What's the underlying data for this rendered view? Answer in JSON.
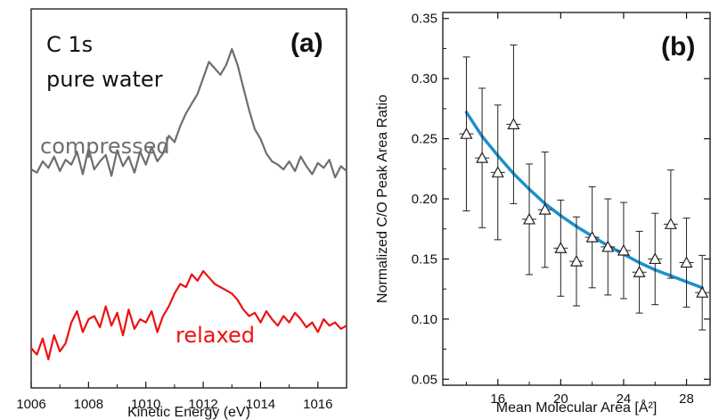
{
  "chart_data": [
    {
      "type": "line",
      "panel_label": "(a)",
      "xlabel": "Kinetic Energy (eV)",
      "ylabel": "",
      "xlim": [
        1006,
        1017
      ],
      "xticks": [
        1006,
        1008,
        1010,
        1012,
        1014,
        1016
      ],
      "annotations": [
        "C 1s",
        "pure water"
      ],
      "series": [
        {
          "name": "compressed",
          "color": "#6e6e6e",
          "x": [
            1006.0,
            1006.2,
            1006.4,
            1006.6,
            1006.8,
            1007.0,
            1007.2,
            1007.4,
            1007.6,
            1007.8,
            1008.0,
            1008.2,
            1008.4,
            1008.6,
            1008.8,
            1009.0,
            1009.2,
            1009.4,
            1009.6,
            1009.8,
            1010.0,
            1010.2,
            1010.4,
            1010.6,
            1010.8,
            1011.0,
            1011.2,
            1011.4,
            1011.6,
            1011.8,
            1012.0,
            1012.2,
            1012.4,
            1012.6,
            1012.8,
            1013.0,
            1013.2,
            1013.4,
            1013.6,
            1013.8,
            1014.0,
            1014.2,
            1014.4,
            1014.6,
            1014.8,
            1015.0,
            1015.2,
            1015.4,
            1015.6,
            1015.8,
            1016.0,
            1016.2,
            1016.4,
            1016.6,
            1016.8,
            1017.0
          ],
          "y": [
            0.25,
            0.23,
            0.3,
            0.26,
            0.33,
            0.24,
            0.31,
            0.28,
            0.36,
            0.22,
            0.38,
            0.25,
            0.3,
            0.34,
            0.21,
            0.37,
            0.27,
            0.33,
            0.23,
            0.36,
            0.28,
            0.39,
            0.3,
            0.35,
            0.46,
            0.42,
            0.52,
            0.6,
            0.66,
            0.72,
            0.82,
            0.92,
            0.88,
            0.84,
            0.9,
            1.0,
            0.9,
            0.76,
            0.62,
            0.5,
            0.44,
            0.35,
            0.3,
            0.28,
            0.25,
            0.3,
            0.24,
            0.33,
            0.27,
            0.22,
            0.29,
            0.26,
            0.31,
            0.2,
            0.27,
            0.24
          ]
        },
        {
          "name": "relaxed",
          "color": "#ee1111",
          "x": [
            1006.0,
            1006.2,
            1006.4,
            1006.6,
            1006.8,
            1007.0,
            1007.2,
            1007.4,
            1007.6,
            1007.8,
            1008.0,
            1008.2,
            1008.4,
            1008.6,
            1008.8,
            1009.0,
            1009.2,
            1009.4,
            1009.6,
            1009.8,
            1010.0,
            1010.2,
            1010.4,
            1010.6,
            1010.8,
            1011.0,
            1011.2,
            1011.4,
            1011.6,
            1011.8,
            1012.0,
            1012.2,
            1012.4,
            1012.6,
            1012.8,
            1013.0,
            1013.2,
            1013.4,
            1013.6,
            1013.8,
            1014.0,
            1014.2,
            1014.4,
            1014.6,
            1014.8,
            1015.0,
            1015.2,
            1015.4,
            1015.6,
            1015.8,
            1016.0,
            1016.2,
            1016.4,
            1016.6,
            1016.8,
            1017.0
          ],
          "y": [
            -0.28,
            -0.32,
            -0.22,
            -0.35,
            -0.2,
            -0.3,
            -0.25,
            -0.12,
            -0.05,
            -0.18,
            -0.1,
            -0.08,
            -0.15,
            -0.02,
            -0.14,
            -0.06,
            -0.2,
            -0.04,
            -0.16,
            -0.1,
            -0.12,
            -0.05,
            -0.18,
            -0.08,
            -0.02,
            0.06,
            0.12,
            0.1,
            0.18,
            0.14,
            0.2,
            0.16,
            0.12,
            0.1,
            0.08,
            0.06,
            0.02,
            -0.04,
            -0.08,
            -0.06,
            -0.12,
            -0.05,
            -0.1,
            -0.14,
            -0.08,
            -0.12,
            -0.06,
            -0.1,
            -0.15,
            -0.12,
            -0.18,
            -0.1,
            -0.14,
            -0.12,
            -0.16,
            -0.14
          ]
        }
      ]
    },
    {
      "type": "scatter",
      "panel_label": "(b)",
      "xlabel": "Mean Molecular Area [Å²]",
      "ylabel": "Normalized C/O Peak Area Ratio",
      "xlim": [
        12.5,
        29.5
      ],
      "ylim": [
        0.045,
        0.355
      ],
      "xticks": [
        16,
        20,
        24,
        28
      ],
      "yticks": [
        0.05,
        0.1,
        0.15,
        0.2,
        0.25,
        0.3,
        0.35
      ],
      "series": [
        {
          "name": "",
          "marker": "triangle",
          "x": [
            14,
            15,
            16,
            17,
            18,
            19,
            20,
            21,
            22,
            23,
            24,
            25,
            26,
            27,
            28,
            29
          ],
          "y": [
            0.254,
            0.234,
            0.222,
            0.262,
            0.183,
            0.191,
            0.159,
            0.148,
            0.168,
            0.16,
            0.157,
            0.139,
            0.15,
            0.179,
            0.147,
            0.122
          ],
          "err": [
            0.064,
            0.058,
            0.056,
            0.066,
            0.046,
            0.048,
            0.04,
            0.037,
            0.042,
            0.04,
            0.04,
            0.034,
            0.038,
            0.045,
            0.037,
            0.031
          ]
        },
        {
          "name": "",
          "type": "fit",
          "color": "#1f8fcc",
          "x": [
            14,
            15,
            16,
            17,
            18,
            19,
            20,
            21,
            22,
            23,
            24,
            25,
            26,
            27,
            28,
            29
          ],
          "y": [
            0.272,
            0.252,
            0.236,
            0.221,
            0.208,
            0.196,
            0.186,
            0.177,
            0.169,
            0.161,
            0.154,
            0.147,
            0.141,
            0.136,
            0.131,
            0.126
          ]
        }
      ]
    }
  ]
}
